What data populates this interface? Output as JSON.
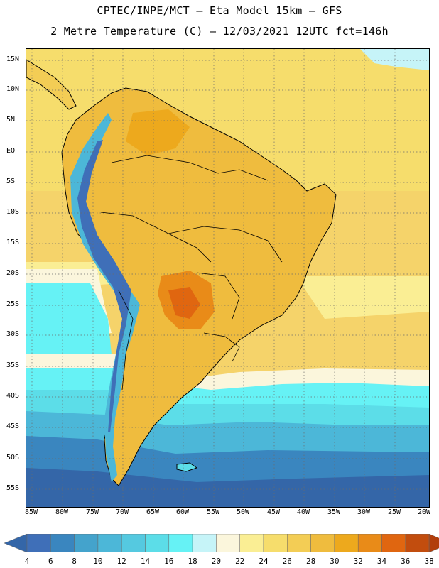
{
  "title": {
    "line1": "CPTEC/INPE/MCT –  Eta Model 15km – GFS",
    "line2": "2 Metre Temperature (C) – 12/03/2021 12UTC fct=146h"
  },
  "axes": {
    "lat_labels": [
      "15N",
      "10N",
      "5N",
      "EQ",
      "5S",
      "10S",
      "15S",
      "20S",
      "25S",
      "30S",
      "35S",
      "40S",
      "45S",
      "50S",
      "55S"
    ],
    "lon_labels": [
      "85W",
      "80W",
      "75W",
      "70W",
      "65W",
      "60W",
      "55W",
      "50W",
      "45W",
      "40W",
      "35W",
      "30W",
      "25W",
      "20W"
    ]
  },
  "colorbar": {
    "labels": [
      "4",
      "6",
      "8",
      "10",
      "12",
      "14",
      "16",
      "18",
      "20",
      "22",
      "24",
      "26",
      "28",
      "30",
      "32",
      "34",
      "36",
      "38"
    ],
    "colors": [
      "#3f6fb8",
      "#3a86bf",
      "#44a3cc",
      "#4cb7d8",
      "#55c9e0",
      "#5cdde8",
      "#66f2f5",
      "#c6f4f8",
      "#fbf6dc",
      "#faee94",
      "#f6dd6c",
      "#f3cd55",
      "#efbc3e",
      "#eda91d",
      "#e98b18",
      "#e06610",
      "#c24d0e"
    ],
    "low_color": "#3466a8",
    "high_color": "#b23e0c"
  }
}
